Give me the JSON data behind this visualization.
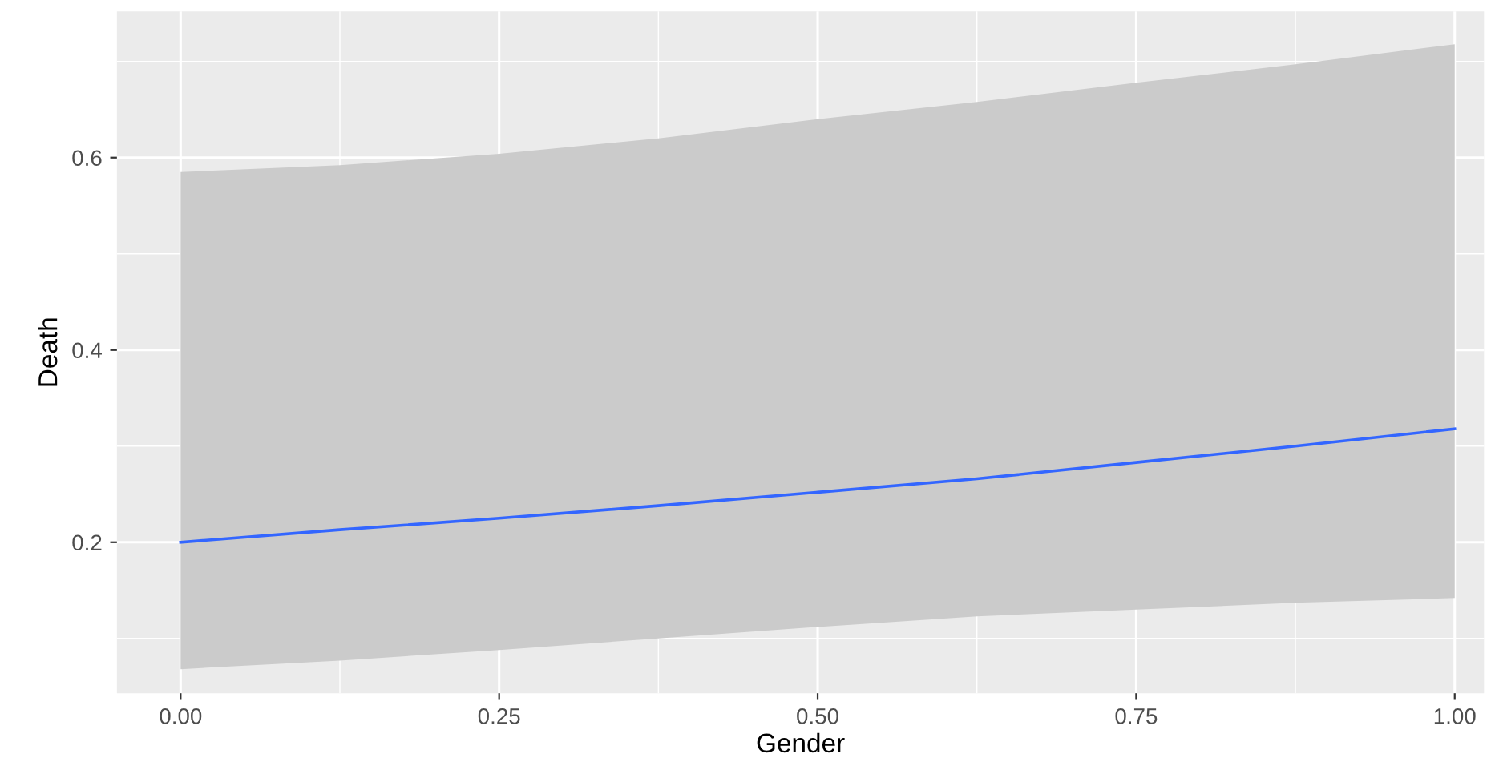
{
  "chart_data": {
    "type": "line",
    "xlabel": "Gender",
    "ylabel": "Death",
    "x": [
      0,
      0.125,
      0.25,
      0.375,
      0.5,
      0.625,
      0.75,
      0.875,
      1
    ],
    "series": [
      {
        "color": "#3366ff",
        "values": [
          0.2,
          0.213,
          0.225,
          0.238,
          0.252,
          0.266,
          0.283,
          0.3,
          0.318
        ],
        "lower": [
          0.068,
          0.077,
          0.088,
          0.1,
          0.112,
          0.123,
          0.13,
          0.137,
          0.142
        ],
        "upper": [
          0.585,
          0.592,
          0.604,
          0.62,
          0.64,
          0.658,
          0.678,
          0.697,
          0.718
        ]
      }
    ],
    "xlim": [
      -0.05,
      1.023
    ],
    "ylim": [
      0.043,
      0.752
    ],
    "xticks": [
      {
        "value": 0,
        "label": "0.00"
      },
      0.25,
      {
        "value": 0.5,
        "label": "0.50"
      },
      0.75,
      {
        "value": 1,
        "label": "1.00"
      }
    ],
    "yticks": [
      0.2,
      0.4,
      0.6
    ],
    "grid": true
  }
}
